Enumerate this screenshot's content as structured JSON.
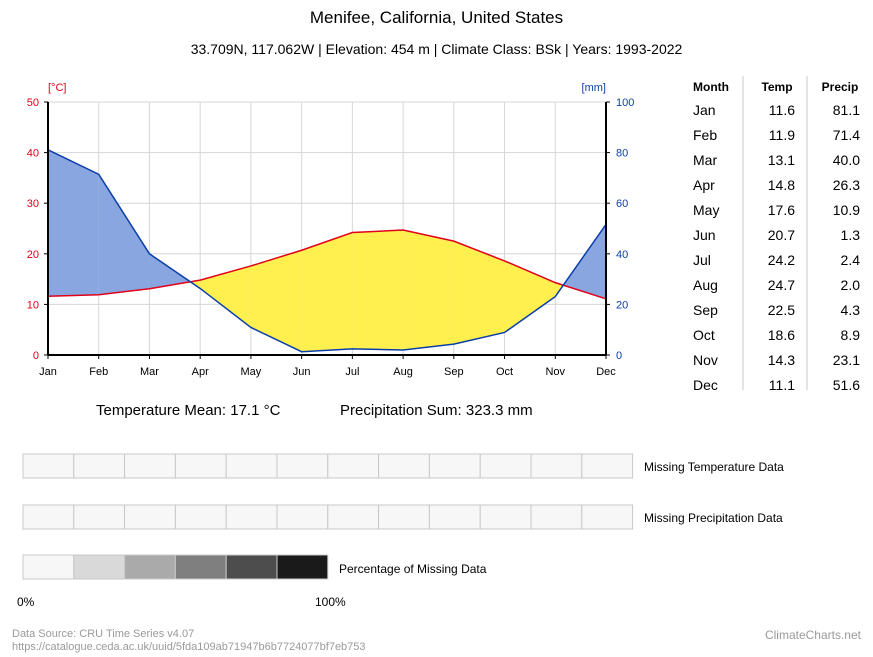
{
  "header": {
    "title": "Menifee, California, United States",
    "subtitle": "33.709N, 117.062W | Elevation: 454 m | Climate Class: BSk | Years: 1993-2022"
  },
  "chart_data": {
    "type": "line",
    "title": "Menifee, California, United States",
    "categories": [
      "Jan",
      "Feb",
      "Mar",
      "Apr",
      "May",
      "Jun",
      "Jul",
      "Aug",
      "Sep",
      "Oct",
      "Nov",
      "Dec"
    ],
    "series": [
      {
        "name": "Temp",
        "unit": "[°C]",
        "axis": "left",
        "color": "#e0001a",
        "values": [
          11.6,
          11.9,
          13.1,
          14.8,
          17.6,
          20.7,
          24.2,
          24.7,
          22.5,
          18.6,
          14.3,
          11.1
        ]
      },
      {
        "name": "Precip",
        "unit": "[mm]",
        "axis": "right",
        "color": "#0b3fa8",
        "values": [
          81.1,
          71.4,
          40.0,
          26.3,
          10.9,
          1.3,
          2.4,
          2.0,
          4.3,
          8.9,
          23.1,
          51.6
        ]
      }
    ],
    "y_left": {
      "label": "[°C]",
      "range": [
        0,
        50
      ],
      "ticks": [
        0,
        10,
        20,
        30,
        40,
        50
      ],
      "color": "#e0001a"
    },
    "y_right": {
      "label": "[mm]",
      "range": [
        0,
        100
      ],
      "ticks": [
        0,
        20,
        40,
        60,
        80,
        100
      ],
      "color": "#0b3fa8"
    },
    "fills": {
      "humid": "#8aa6e0",
      "arid": "#fff050"
    },
    "grid": true
  },
  "table": {
    "headers": [
      "Month",
      "Temp",
      "Precip"
    ],
    "rows": [
      [
        "Jan",
        "11.6",
        "81.1"
      ],
      [
        "Feb",
        "11.9",
        "71.4"
      ],
      [
        "Mar",
        "13.1",
        "40.0"
      ],
      [
        "Apr",
        "14.8",
        "26.3"
      ],
      [
        "May",
        "17.6",
        "10.9"
      ],
      [
        "Jun",
        "20.7",
        "1.3"
      ],
      [
        "Jul",
        "24.2",
        "2.4"
      ],
      [
        "Aug",
        "24.7",
        "2.0"
      ],
      [
        "Sep",
        "22.5",
        "4.3"
      ],
      [
        "Oct",
        "18.6",
        "8.9"
      ],
      [
        "Nov",
        "14.3",
        "23.1"
      ],
      [
        "Dec",
        "11.1",
        "51.6"
      ]
    ]
  },
  "summary": {
    "temp_mean": "Temperature Mean: 17.1 °C",
    "precip_sum": "Precipitation Sum: 323.3 mm"
  },
  "missing": {
    "temp_label": "Missing Temperature Data",
    "precip_label": "Missing Precipitation Data",
    "pct_label": "Percentage of Missing Data",
    "scale_min": "0%",
    "scale_max": "100%",
    "cell_color": "#f7f7f7",
    "scale_colors": [
      "#f7f7f7",
      "#d9d9d9",
      "#aaaaaa",
      "#7f7f7f",
      "#4d4d4d",
      "#1a1a1a"
    ]
  },
  "footer": {
    "source": "Data Source: CRU Time Series v4.07",
    "url": "https://catalogue.ceda.ac.uk/uuid/5fda109ab71947b6b7724077bf7eb753",
    "brand": "ClimateCharts.net"
  }
}
